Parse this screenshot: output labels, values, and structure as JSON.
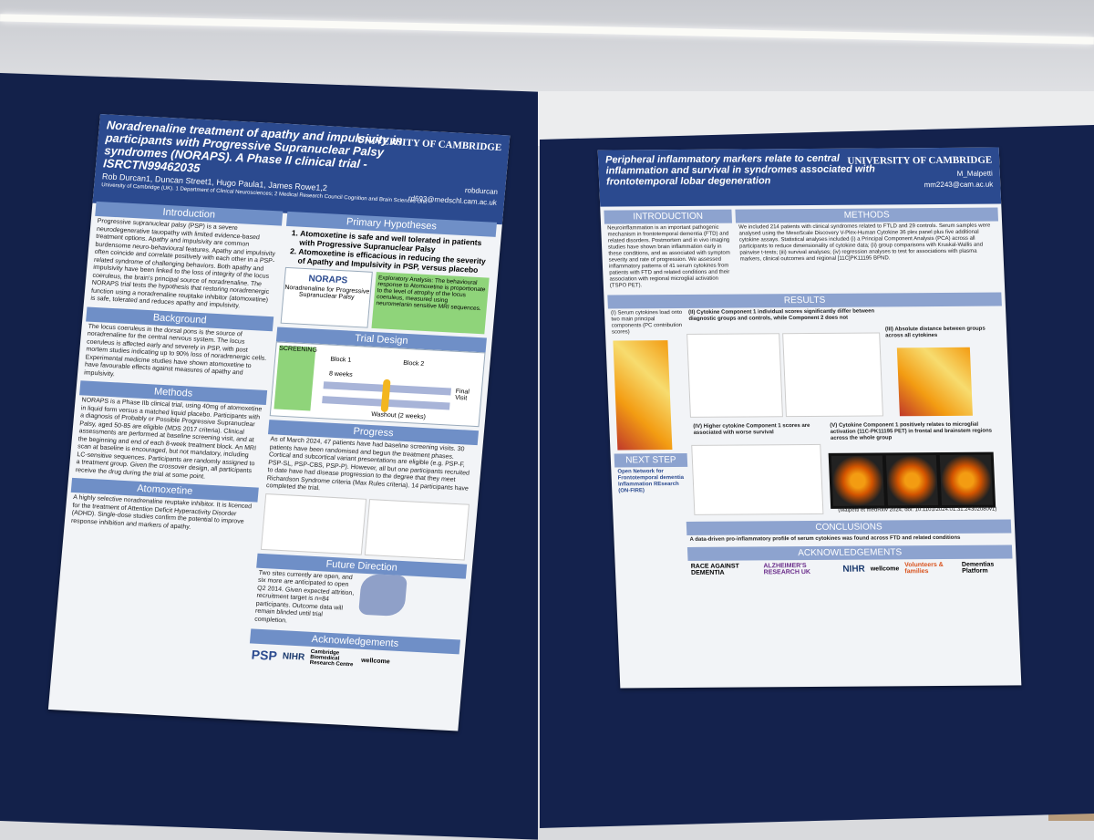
{
  "left_poster": {
    "title": "Noradrenaline treatment of apathy and impulsivity in participants with Progressive Supranuclear Palsy syndromes (NORAPS). A Phase II clinical trial - ISRCTN99462035",
    "authors": "Rob Durcan1, Duncan Street1, Hugo Paula1, James Rowe1,2",
    "affiliation": "University of Cambridge (UK). 1 Department of Clinical Neurosciences; 2 Medical Research Council Cognition and Brain Sciences Unit",
    "logo": "UNIVERSITY OF CAMBRIDGE",
    "handle": "robdurcan",
    "email": "rd693@medschl.cam.ac.uk",
    "introduction": {
      "heading": "Introduction",
      "text": "Progressive supranuclear palsy (PSP) is a severe neurodegenerative tauopathy with limited evidence-based treatment options. Apathy and impulsivity are common burdensome neuro-behavioural features. Apathy and impulsivity often coincide and correlate positively with each other in a PSP-related syndrome of challenging behaviors. Both apathy and impulsivity have been linked to the loss of integrity of the locus coeruleus, the brain's principal source of noradrenaline. The NORAPS trial tests the hypothesis that restoring noradrenergic function using a noradrenaline reuptake inhibitor (atomoxetine) is safe, tolerated and reduces apathy and impulsivity."
    },
    "background": {
      "heading": "Background",
      "text": "The locus coeruleus in the dorsal pons is the source of noradrenaline for the central nervous system. The locus coeruleus is affected early and severely in PSP, with post mortem studies indicating up to 90% loss of noradrenergic cells. Experimental medicine studies have shown atomoxetine to have favourable effects against measures of apathy and impulsivity."
    },
    "methods": {
      "heading": "Methods",
      "text": "NORAPS is a Phase IIb clinical trial, using 40mg of atomoxetine in liquid form versus a matched liquid placebo. Participants with a diagnosis of Probably or Possible Progressive Supranuclear Palsy, aged 50-85 are eligible (MDS 2017 criteria). Clinical assessments are performed at baseline screening visit, and at the beginning and end of each 8-week treatment block. An MRI scan at baseline is encouraged, but not mandatory, including LC-sensitive sequences. Participants are randomly assigned to a treatment group. Given the crossover design, all participants receive the drug during the trial at some point."
    },
    "atomoxetine": {
      "heading": "Atomoxetine",
      "text": "A highly selective noradrenaline reuptake inhibitor. It is licenced for the treatment of Attention Deficit Hyperactivity Disorder (ADHD). Single-dose studies confirm the potential to improve response inhibition and markers of apathy."
    },
    "hypotheses": {
      "heading": "Primary Hypotheses",
      "items": [
        "Atomoxetine is safe and well tolerated in patients with Progressive Supranuclear Palsy",
        "Atomoxetine is efficacious in reducing the severity of Apathy and Impulsivity in PSP, versus placebo"
      ]
    },
    "noraps_logo": "NORAPS",
    "noraps_sub": "Noradrenaline for Progressive Supranuclear Palsy",
    "exploratory": "Exploratory Analysis: The behavioural response to Atomoxetine is proportionate to the level of atrophy of the locus coeruleus, measured using neuromelanin sensitive MRI sequences.",
    "trial_design": {
      "heading": "Trial Design",
      "block1": "Block 1",
      "block2": "Block 2",
      "weeks": "8 weeks",
      "washout": "Washout (2 weeks)",
      "screening": "SCREENING",
      "final": "Final Visit"
    },
    "progress": {
      "heading": "Progress",
      "text": "As of March 2024, 47 patients have had baseline screening visits. 30 patients have been randomised and begun the treatment phases. Cortical and subcortical variant presentations are eligible (e.g. PSP-F, PSP-SL, PSP-CBS, PSP-P). However, all but one participants recruited to date have had disease progression to the degree that they meet Richardson Syndrome criteria (Max Rules criteria). 14 participants have completed the trial."
    },
    "future": {
      "heading": "Future Direction",
      "text": "Two sites currently are open, and six more are anticipated to open Q2 2014. Given expected attrition, recruitment target is n=84 participants. Outcome data will remain blinded until trial completion."
    },
    "acknowledgements": {
      "heading": "Acknowledgements",
      "logos": [
        "PSP",
        "NIHR",
        "Cambridge Biomedical Research Centre",
        "wellcome"
      ]
    }
  },
  "right_poster": {
    "title": "Peripheral inflammatory markers relate to central inflammation and survival in syndromes associated with frontotemporal lobar degeneration",
    "logo": "UNIVERSITY OF CAMBRIDGE",
    "handle": "M_Malpetti",
    "email": "mm2243@cam.ac.uk",
    "introduction": {
      "heading": "INTRODUCTION",
      "text": "Neuroinflammation is an important pathogenic mechanism in frontotemporal dementia (FTD) and related disorders. Postmortem and in vivo imaging studies have shown brain inflammation early in these conditions, and as associated with symptom severity and rate of progression. We assessed inflammatory patterns of 41 serum cytokines from patients with FTD and related conditions and their association with regional microglial activation (TSPO PET)."
    },
    "methods": {
      "heading": "METHODS",
      "text": "We included 214 patients with clinical syndromes related to FTLD and 29 controls. Serum samples were analysed using the MesoScale Discovery V-Plex-Human Cytokine 36 plex panel plus five additional cytokine assays. Statistical analyses included (i) a Principal Component Analysis (PCA) across all participants to reduce dimensionality of cytokine data; (ii) group comparisons with Kruskal-Wallis and pairwise t-tests; (iii) survival analyses; (iv) regression analyses to test for associations with plasma markers, clinical outcomes and regional [11C]PK11195 BPND."
    },
    "results": {
      "heading": "RESULTS",
      "panels": [
        "(I) Serum cytokines load onto two main principal components (PC contribution scores)",
        "(II) Cytokine Component 1 individual scores significantly differ between diagnostic groups and controls, while Component 2 does not",
        "(III) Absolute distance between groups across all cytokines",
        "(IV) Higher cytokine Component 1 scores are associated with worse survival",
        "(V) Cytokine Component 1 positively relates to microglial activation (11C-PK11195 PET) in frontal and brainstem regions across the whole group"
      ]
    },
    "next_step": {
      "heading": "NEXT STEP",
      "text": "Open Network for Frontotemporal dementia Inflammation REsearch (ON-FIRE)"
    },
    "citation": "(Malpetti et medRxiv 2024, doi: 10.1101/2024.01.31.24302080v1)",
    "conclusions": {
      "heading": "CONCLUSIONS",
      "text": "A data-driven pro-inflammatory profile of serum cytokines was found across FTD and related conditions"
    },
    "acknowledgements": {
      "heading": "ACKNOWLEDGEMENTS",
      "logos": [
        "RACE AGAINST DEMENTIA",
        "ALZHEIMER'S RESEARCH UK",
        "NIHR",
        "wellcome",
        "Volunteers & families",
        "Dementias Platform"
      ]
    }
  }
}
